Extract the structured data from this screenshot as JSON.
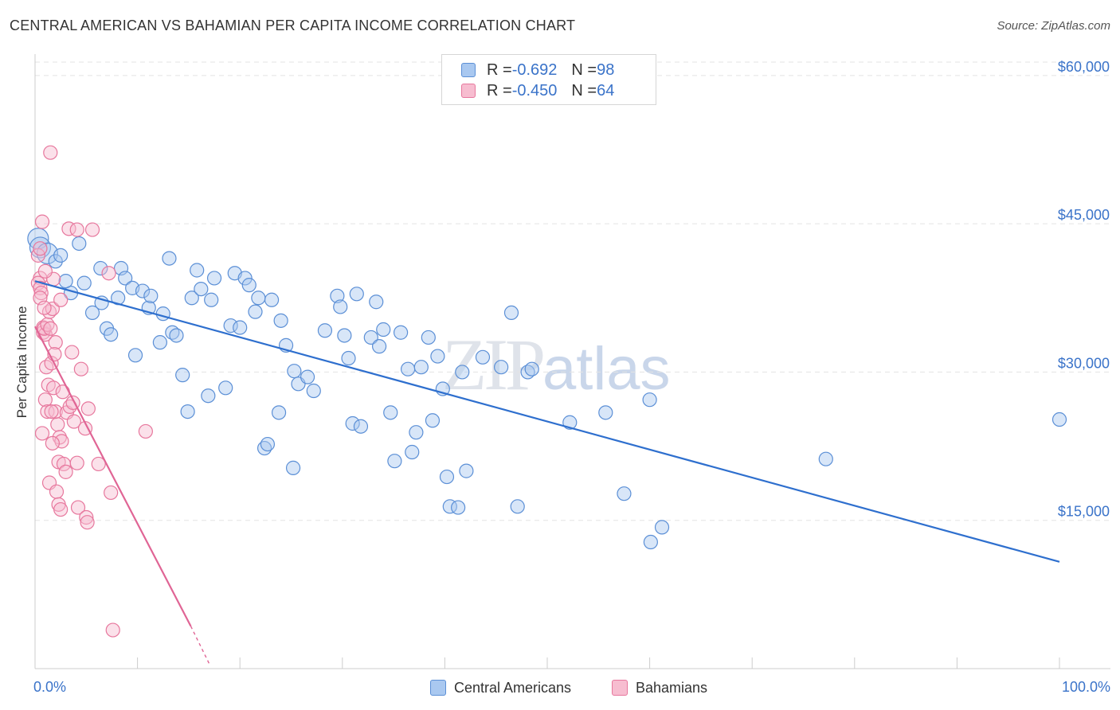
{
  "title": "CENTRAL AMERICAN VS BAHAMIAN PER CAPITA INCOME CORRELATION CHART",
  "source": "Source: ZipAtlas.com",
  "watermark": {
    "zip": "ZIP",
    "atlas": "atlas"
  },
  "legend": {
    "series": [
      {
        "r_label": "R = ",
        "r_value": "-0.692",
        "n_label": "N = ",
        "n_value": "98"
      },
      {
        "r_label": "R = ",
        "r_value": "-0.450",
        "n_label": "N = ",
        "n_value": "64"
      }
    ]
  },
  "colors": {
    "blue_fill": "#a9c8f0",
    "blue_stroke": "#5b8fd6",
    "blue_line": "#2e6fce",
    "pink_fill": "#f7bdd0",
    "pink_stroke": "#e7779d",
    "pink_line": "#e06595",
    "axis_text": "#3a73c9",
    "grid": "#e3e3e3"
  },
  "chart_data": {
    "type": "scatter",
    "title": "CENTRAL AMERICAN VS BAHAMIAN PER CAPITA INCOME CORRELATION CHART",
    "xlabel": "",
    "ylabel": "Per Capita Income",
    "xlim": [
      0,
      100
    ],
    "ylim": [
      0,
      62000
    ],
    "x_tick_labels": [
      "0.0%",
      "100.0%"
    ],
    "y_ticks": [
      15000,
      30000,
      45000,
      60000
    ],
    "y_tick_labels": [
      "$15,000",
      "$30,000",
      "$45,000",
      "$60,000"
    ],
    "grid": true,
    "legend_position": "top-center",
    "series": [
      {
        "name": "Central Americans",
        "color": "#a9c8f0",
        "trend": {
          "x": [
            0,
            100
          ],
          "y": [
            39200,
            10800
          ]
        },
        "points": [
          [
            0.3,
            43500
          ],
          [
            0.5,
            42600
          ],
          [
            1.2,
            42000
          ],
          [
            2.0,
            41200
          ],
          [
            2.5,
            41800
          ],
          [
            4.3,
            43000
          ],
          [
            3.5,
            38000
          ],
          [
            3.0,
            39200
          ],
          [
            4.8,
            39000
          ],
          [
            6.4,
            40500
          ],
          [
            8.4,
            40500
          ],
          [
            6.5,
            37000
          ],
          [
            5.6,
            36000
          ],
          [
            7.0,
            34400
          ],
          [
            7.4,
            33800
          ],
          [
            8.1,
            37500
          ],
          [
            8.8,
            39500
          ],
          [
            9.5,
            38500
          ],
          [
            10.5,
            38200
          ],
          [
            11.1,
            36500
          ],
          [
            11.3,
            37700
          ],
          [
            12.5,
            35900
          ],
          [
            13.1,
            41500
          ],
          [
            9.8,
            31700
          ],
          [
            12.2,
            33000
          ],
          [
            13.4,
            34000
          ],
          [
            13.8,
            33700
          ],
          [
            14.4,
            29700
          ],
          [
            14.9,
            26000
          ],
          [
            15.3,
            37500
          ],
          [
            15.8,
            40300
          ],
          [
            16.2,
            38400
          ],
          [
            17.2,
            37300
          ],
          [
            17.5,
            39500
          ],
          [
            16.9,
            27600
          ],
          [
            18.6,
            28400
          ],
          [
            19.1,
            34700
          ],
          [
            19.5,
            40000
          ],
          [
            20.0,
            34500
          ],
          [
            20.5,
            39500
          ],
          [
            20.9,
            38800
          ],
          [
            21.5,
            36100
          ],
          [
            21.8,
            37500
          ],
          [
            23.1,
            37300
          ],
          [
            24.0,
            35200
          ],
          [
            24.5,
            32700
          ],
          [
            25.3,
            30100
          ],
          [
            23.8,
            25900
          ],
          [
            22.4,
            22300
          ],
          [
            22.7,
            22700
          ],
          [
            25.7,
            28800
          ],
          [
            26.6,
            29500
          ],
          [
            27.2,
            28100
          ],
          [
            25.2,
            20300
          ],
          [
            28.3,
            34200
          ],
          [
            29.5,
            37700
          ],
          [
            29.8,
            36600
          ],
          [
            30.2,
            33700
          ],
          [
            30.6,
            31400
          ],
          [
            31.0,
            24800
          ],
          [
            31.8,
            24500
          ],
          [
            31.4,
            37900
          ],
          [
            32.8,
            33500
          ],
          [
            33.3,
            37100
          ],
          [
            33.6,
            32600
          ],
          [
            34.0,
            34300
          ],
          [
            34.7,
            25900
          ],
          [
            35.1,
            21000
          ],
          [
            35.7,
            34000
          ],
          [
            36.4,
            30300
          ],
          [
            36.8,
            21900
          ],
          [
            37.2,
            23900
          ],
          [
            37.7,
            30500
          ],
          [
            38.4,
            33500
          ],
          [
            38.8,
            25100
          ],
          [
            39.3,
            31600
          ],
          [
            39.8,
            28300
          ],
          [
            40.2,
            19400
          ],
          [
            40.5,
            16400
          ],
          [
            41.3,
            16300
          ],
          [
            41.7,
            30000
          ],
          [
            42.1,
            20000
          ],
          [
            43.7,
            31500
          ],
          [
            45.5,
            30500
          ],
          [
            46.5,
            36000
          ],
          [
            47.1,
            16400
          ],
          [
            48.1,
            30000
          ],
          [
            48.5,
            30300
          ],
          [
            52.2,
            24900
          ],
          [
            55.7,
            25900
          ],
          [
            57.5,
            17700
          ],
          [
            60.0,
            27200
          ],
          [
            60.1,
            12800
          ],
          [
            61.2,
            14300
          ],
          [
            77.2,
            21200
          ],
          [
            100.0,
            25200
          ]
        ]
      },
      {
        "name": "Bahamians",
        "color": "#f7bdd0",
        "trend": {
          "x": [
            0,
            15.2
          ],
          "y": [
            34600,
            4300
          ],
          "dashed_to": {
            "x": 17.0,
            "y": 500
          }
        },
        "points": [
          [
            0.3,
            41800
          ],
          [
            0.5,
            42500
          ],
          [
            0.7,
            45200
          ],
          [
            0.5,
            39500
          ],
          [
            0.3,
            39000
          ],
          [
            0.5,
            38500
          ],
          [
            0.6,
            38000
          ],
          [
            0.5,
            37500
          ],
          [
            0.8,
            34000
          ],
          [
            0.8,
            34500
          ],
          [
            1.0,
            33800
          ],
          [
            0.9,
            34400
          ],
          [
            1.2,
            34800
          ],
          [
            1.4,
            36100
          ],
          [
            1.5,
            34400
          ],
          [
            1.7,
            36400
          ],
          [
            2.0,
            33000
          ],
          [
            1.8,
            39400
          ],
          [
            2.5,
            37300
          ],
          [
            1.1,
            30500
          ],
          [
            1.3,
            28700
          ],
          [
            1.0,
            27200
          ],
          [
            1.2,
            26000
          ],
          [
            1.6,
            30900
          ],
          [
            1.8,
            28400
          ],
          [
            2.2,
            24700
          ],
          [
            2.4,
            23400
          ],
          [
            2.6,
            23000
          ],
          [
            2.0,
            26000
          ],
          [
            1.7,
            22800
          ],
          [
            2.3,
            20900
          ],
          [
            2.8,
            20700
          ],
          [
            3.1,
            25900
          ],
          [
            3.4,
            26500
          ],
          [
            3.8,
            25000
          ],
          [
            4.1,
            20800
          ],
          [
            3.6,
            32000
          ],
          [
            4.5,
            30300
          ],
          [
            4.9,
            24300
          ],
          [
            5.2,
            26300
          ],
          [
            1.4,
            18800
          ],
          [
            2.1,
            17900
          ],
          [
            2.3,
            16600
          ],
          [
            2.5,
            16100
          ],
          [
            3.0,
            19900
          ],
          [
            4.2,
            16300
          ],
          [
            5.0,
            15300
          ],
          [
            5.1,
            14800
          ],
          [
            3.3,
            44500
          ],
          [
            4.1,
            44400
          ],
          [
            5.6,
            44400
          ],
          [
            7.2,
            40000
          ],
          [
            6.2,
            20700
          ],
          [
            7.4,
            17800
          ],
          [
            10.8,
            24000
          ],
          [
            1.5,
            52200
          ],
          [
            7.6,
            3900
          ],
          [
            1.0,
            40200
          ],
          [
            0.9,
            36500
          ],
          [
            1.6,
            26000
          ],
          [
            2.7,
            28000
          ],
          [
            0.7,
            23800
          ],
          [
            1.9,
            31800
          ],
          [
            3.7,
            26900
          ]
        ]
      }
    ]
  }
}
